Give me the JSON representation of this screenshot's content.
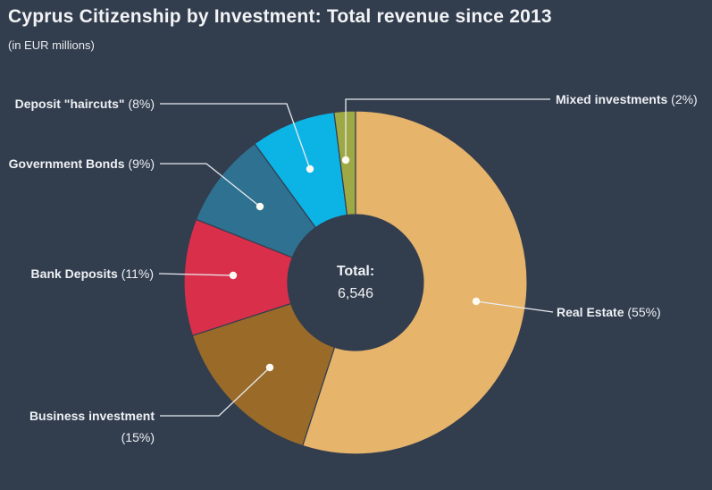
{
  "chart_data": {
    "type": "pie",
    "donut": true,
    "title": "Cyprus Citizenship by Investment: Total revenue since 2013",
    "subtitle": "(in EUR millions)",
    "total_label": "Total:",
    "total_value": "6,546",
    "start_angle_deg": 0,
    "direction": "clockwise",
    "slices": [
      {
        "label": "Real Estate",
        "pct": 55,
        "pct_label": "(55%)",
        "color": "#e6b46b"
      },
      {
        "label": "Business investment",
        "pct": 15,
        "pct_label": "(15%)",
        "color": "#9a6b28"
      },
      {
        "label": "Bank Deposits",
        "pct": 11,
        "pct_label": "(11%)",
        "color": "#da2f4b"
      },
      {
        "label": "Government Bonds",
        "pct": 9,
        "pct_label": "(9%)",
        "color": "#2f7191"
      },
      {
        "label": "Deposit \"haircuts\"",
        "pct": 8,
        "pct_label": "(8%)",
        "color": "#0cb4e6"
      },
      {
        "label": "Mixed investments",
        "pct": 2,
        "pct_label": "(2%)",
        "color": "#9ea844"
      }
    ]
  },
  "colors": {
    "background": "#323d4e",
    "title_text": "#f2f3f5",
    "label_text": "#eef1f4",
    "callout_line": "#e9ecef",
    "callout_dot": "#fbfbf4"
  }
}
